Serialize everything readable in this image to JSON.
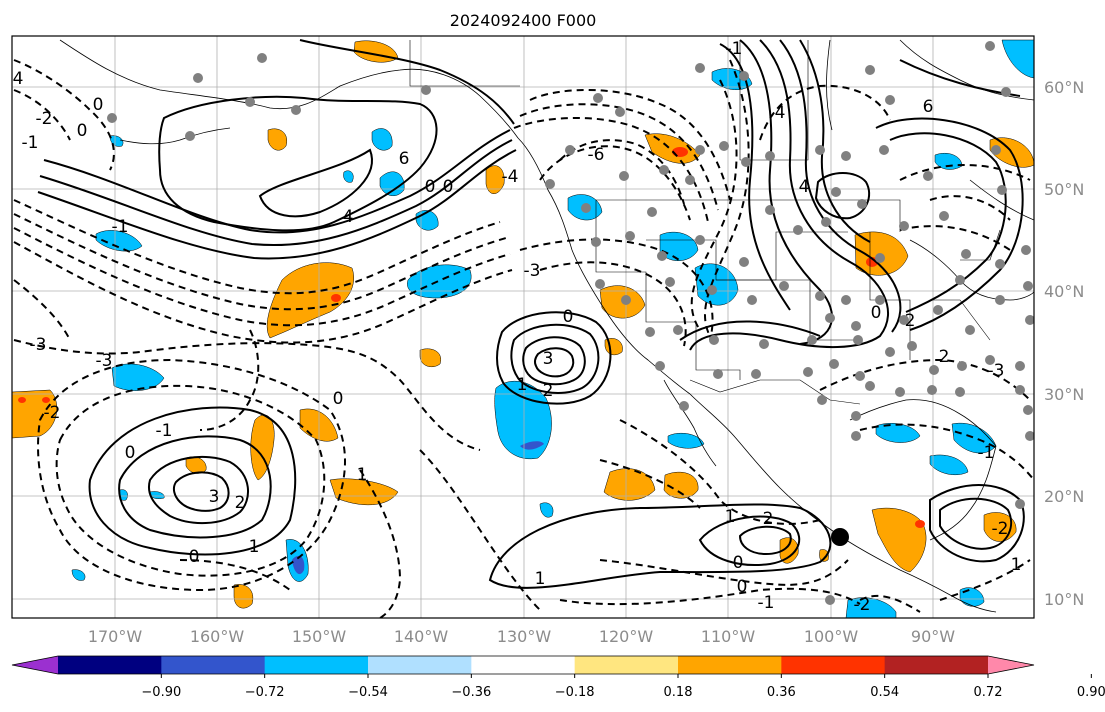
{
  "title": "2024092400 F000",
  "lat_labels": [
    "60°N",
    "50°N",
    "40°N",
    "30°N",
    "20°N",
    "10°N"
  ],
  "lon_labels": [
    "170°W",
    "160°W",
    "150°W",
    "140°W",
    "130°W",
    "120°W",
    "110°W",
    "100°W",
    "90°W"
  ],
  "colorbar": {
    "ticks": [
      "−0.90",
      "−0.72",
      "−0.54",
      "−0.36",
      "−0.18",
      "0.18",
      "0.36",
      "0.54",
      "0.72",
      "0.90"
    ],
    "colors": [
      "#9b30d0",
      "#000080",
      "#3355cc",
      "#00bfff",
      "#b0e0ff",
      "#ffffff",
      "#ffe680",
      "#ffa500",
      "#ff3300",
      "#b22222",
      "#ff88aa"
    ]
  },
  "contour_labels": [
    "0",
    "1",
    "2",
    "3",
    "4",
    "6",
    "-1",
    "-2",
    "-3",
    "-4",
    "-6"
  ],
  "fill_colors": {
    "pos_light": "#ffa500",
    "pos_strong": "#ff3300",
    "neg_light": "#00bfff",
    "neg_strong": "#3355cc"
  }
}
